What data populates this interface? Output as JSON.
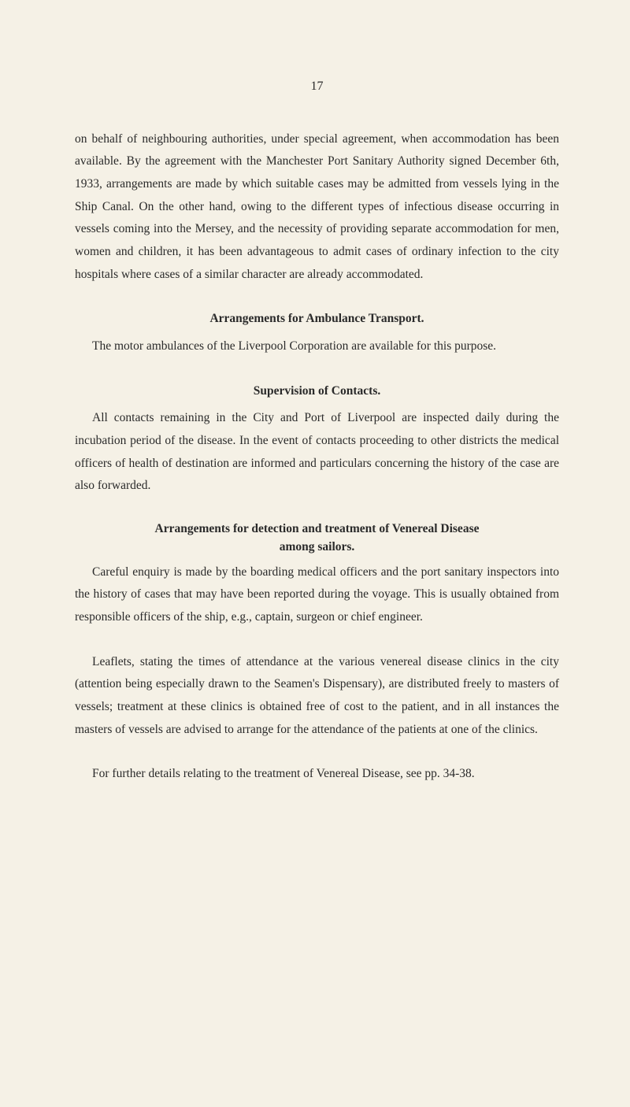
{
  "page_number": "17",
  "paragraphs": {
    "p1": "on behalf of neighbouring authorities, under special agreement, when accommodation has been available. By the agreement with the Manchester Port Sanitary Authority signed December 6th, 1933, arrangements are made by which suitable cases may be admitted from vessels lying in the Ship Canal. On the other hand, owing to the different types of infectious disease occurring in vessels coming into the Mersey, and the necessity of providing separate accommodation for men, women and children, it has been advantageous to admit cases of ordinary infection to the city hospitals where cases of a similar character are already accommodated.",
    "h1": "Arrangements for Ambulance Transport.",
    "p2": "The motor ambulances of the Liverpool Corporation are available for this purpose.",
    "h2": "Supervision of Contacts.",
    "p3": "All contacts remaining in the City and Port of Liverpool are inspected daily during the incubation period of the disease. In the event of contacts proceeding to other districts the medical officers of health of destination are informed and particulars concerning the history of the case are also forwarded.",
    "h3_line1": "Arrangements for detection and treatment of Venereal Disease",
    "h3_line2": "among sailors.",
    "p4": "Careful enquiry is made by the boarding medical officers and the port sanitary inspectors into the history of cases that may have been reported during the voyage. This is usually obtained from responsible officers of the ship, e.g., captain, surgeon or chief engineer.",
    "p5": "Leaflets, stating the times of attendance at the various venereal disease clinics in the city (attention being especially drawn to the Seamen's Dispensary), are distributed freely to masters of vessels; treatment at these clinics is obtained free of cost to the patient, and in all instances the masters of vessels are advised to arrange for the attendance of the patients at one of the clinics.",
    "p6": "For further details relating to the treatment of Venereal Disease, see pp. 34-38."
  },
  "colors": {
    "background": "#f5f1e6",
    "text": "#2a2a2a"
  },
  "typography": {
    "body_fontsize": 15.5,
    "line_height": 1.85,
    "font_family": "Georgia, Times New Roman, serif"
  }
}
